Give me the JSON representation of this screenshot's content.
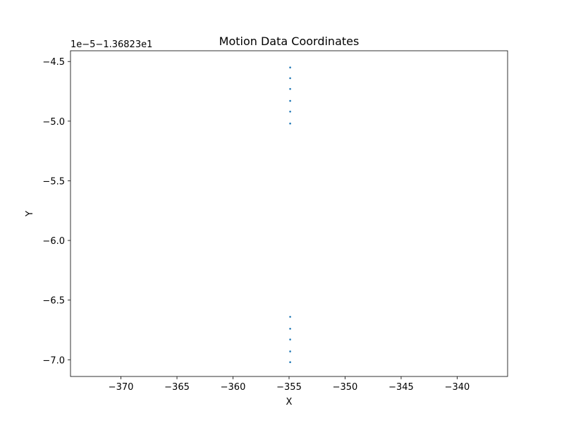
{
  "chart_data": {
    "type": "scatter",
    "title": "Motion Data Coordinates",
    "xlabel": "X",
    "ylabel": "Y",
    "y_offset_label": "1e−5−1.36823e1",
    "xlim": [
      -374.5,
      -335.5
    ],
    "ylim": [
      -7.14,
      -4.41
    ],
    "x_ticks": [
      -370,
      -365,
      -360,
      -355,
      -350,
      -345,
      -340
    ],
    "x_tick_labels": [
      "−370",
      "−365",
      "−360",
      "−355",
      "−350",
      "−345",
      "−340"
    ],
    "y_ticks": [
      -4.5,
      -5.0,
      -5.5,
      -6.0,
      -6.5,
      -7.0
    ],
    "y_tick_labels": [
      "−4.5",
      "−5.0",
      "−5.5",
      "−6.0",
      "−6.5",
      "−7.0"
    ],
    "grid": false,
    "legend": "none",
    "series": [
      {
        "color": "#1f77b4",
        "points": [
          {
            "x": -354.9,
            "y": -4.55
          },
          {
            "x": -354.9,
            "y": -4.64
          },
          {
            "x": -354.9,
            "y": -4.73
          },
          {
            "x": -354.9,
            "y": -4.83
          },
          {
            "x": -354.9,
            "y": -4.92
          },
          {
            "x": -354.9,
            "y": -5.02
          },
          {
            "x": -354.9,
            "y": -6.64
          },
          {
            "x": -354.9,
            "y": -6.74
          },
          {
            "x": -354.9,
            "y": -6.83
          },
          {
            "x": -354.9,
            "y": -6.93
          },
          {
            "x": -354.9,
            "y": -7.02
          }
        ]
      }
    ]
  }
}
